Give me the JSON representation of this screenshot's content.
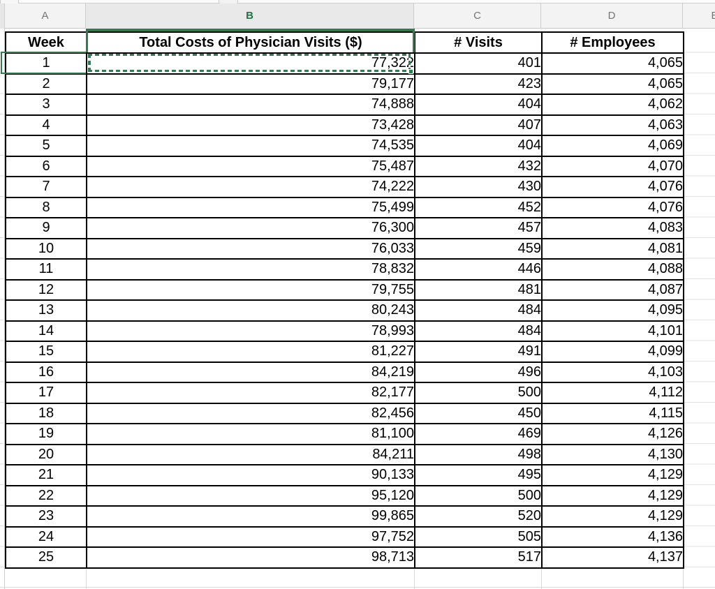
{
  "sheet": {
    "column_letters": [
      "A",
      "B",
      "C",
      "D",
      "E"
    ],
    "selected_column": "B"
  },
  "table": {
    "headers": {
      "week": "Week",
      "cost": "Total Costs of Physician Visits ($)",
      "visits": "# Visits",
      "employees": "# Employees"
    },
    "rows": [
      {
        "week": "1",
        "cost": "77,322",
        "visits": "401",
        "employees": "4,065"
      },
      {
        "week": "2",
        "cost": "79,177",
        "visits": "423",
        "employees": "4,065"
      },
      {
        "week": "3",
        "cost": "74,888",
        "visits": "404",
        "employees": "4,062"
      },
      {
        "week": "4",
        "cost": "73,428",
        "visits": "407",
        "employees": "4,063"
      },
      {
        "week": "5",
        "cost": "74,535",
        "visits": "404",
        "employees": "4,069"
      },
      {
        "week": "6",
        "cost": "75,487",
        "visits": "432",
        "employees": "4,070"
      },
      {
        "week": "7",
        "cost": "74,222",
        "visits": "430",
        "employees": "4,076"
      },
      {
        "week": "8",
        "cost": "75,499",
        "visits": "452",
        "employees": "4,076"
      },
      {
        "week": "9",
        "cost": "76,300",
        "visits": "457",
        "employees": "4,083"
      },
      {
        "week": "10",
        "cost": "76,033",
        "visits": "459",
        "employees": "4,081"
      },
      {
        "week": "11",
        "cost": "78,832",
        "visits": "446",
        "employees": "4,088"
      },
      {
        "week": "12",
        "cost": "79,755",
        "visits": "481",
        "employees": "4,087"
      },
      {
        "week": "13",
        "cost": "80,243",
        "visits": "484",
        "employees": "4,095"
      },
      {
        "week": "14",
        "cost": "78,993",
        "visits": "484",
        "employees": "4,101"
      },
      {
        "week": "15",
        "cost": "81,227",
        "visits": "491",
        "employees": "4,099"
      },
      {
        "week": "16",
        "cost": "84,219",
        "visits": "496",
        "employees": "4,103"
      },
      {
        "week": "17",
        "cost": "82,177",
        "visits": "500",
        "employees": "4,112"
      },
      {
        "week": "18",
        "cost": "82,456",
        "visits": "450",
        "employees": "4,115"
      },
      {
        "week": "19",
        "cost": "81,100",
        "visits": "469",
        "employees": "4,126"
      },
      {
        "week": "20",
        "cost": "84,211",
        "visits": "498",
        "employees": "4,130"
      },
      {
        "week": "21",
        "cost": "90,133",
        "visits": "495",
        "employees": "4,129"
      },
      {
        "week": "22",
        "cost": "95,120",
        "visits": "500",
        "employees": "4,129"
      },
      {
        "week": "23",
        "cost": "99,865",
        "visits": "520",
        "employees": "4,129"
      },
      {
        "week": "24",
        "cost": "97,752",
        "visits": "505",
        "employees": "4,136"
      },
      {
        "week": "25",
        "cost": "98,713",
        "visits": "517",
        "employees": "4,137"
      }
    ]
  },
  "colors": {
    "selection_green": "#2f7d4f",
    "selected_letter_green": "#217346",
    "cell_border_black": "#000000",
    "gridline_gray": "#d9d9d9",
    "header_bg": "#f3f3f3"
  }
}
